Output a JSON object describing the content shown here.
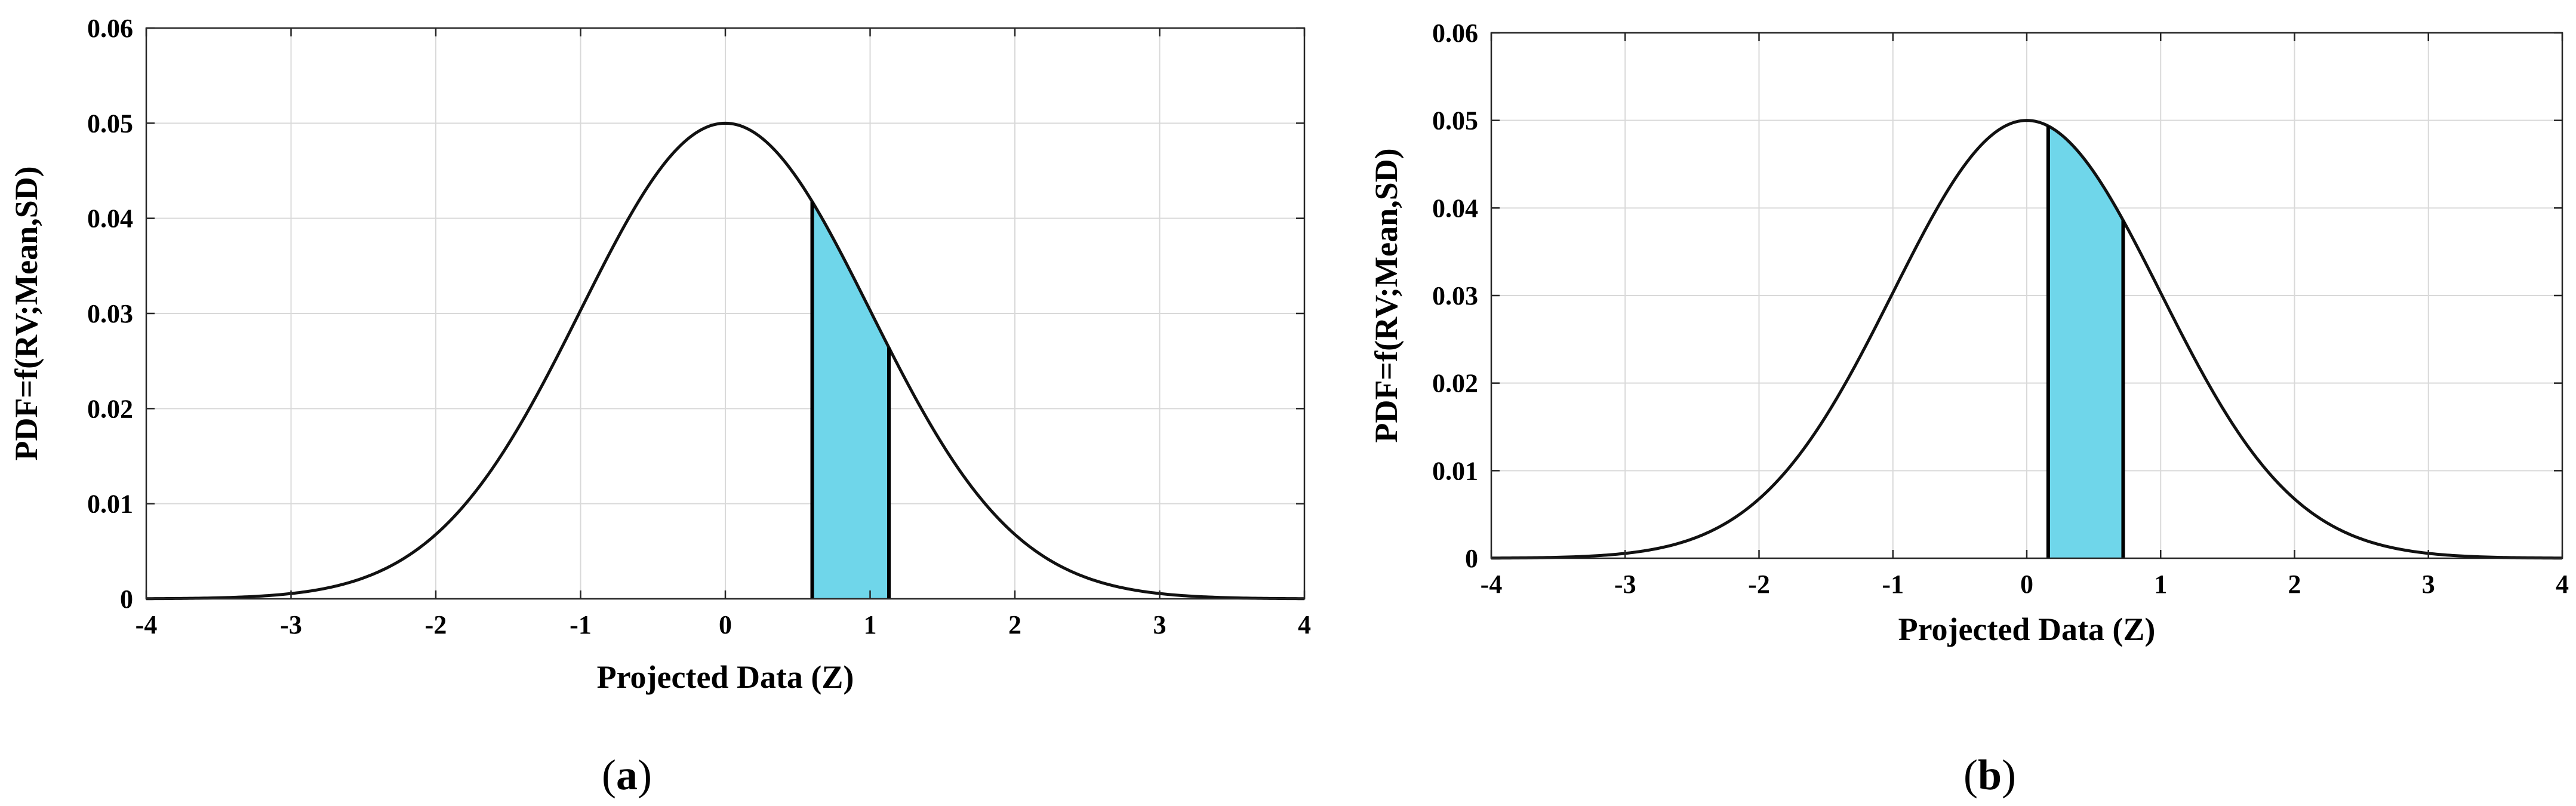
{
  "chart_data": [
    {
      "type": "area",
      "panel_label": {
        "open": "(",
        "letter": "a",
        "close": ")"
      },
      "title": "",
      "xlabel": "Projected Data (Z)",
      "ylabel": "PDF=f(RV;Mean,SD)",
      "xlim": [
        -4,
        4
      ],
      "ylim": [
        0,
        0.06
      ],
      "xticks": [
        -4,
        -3,
        -2,
        -1,
        0,
        1,
        2,
        3,
        4
      ],
      "yticks": [
        0,
        0.01,
        0.02,
        0.03,
        0.04,
        0.05,
        0.06
      ],
      "xtick_labels": [
        "-4",
        "-3",
        "-2",
        "-1",
        "0",
        "1",
        "2",
        "3",
        "4"
      ],
      "ytick_labels": [
        "0",
        "0.01",
        "0.02",
        "0.03",
        "0.04",
        "0.05",
        "0.06"
      ],
      "grid": true,
      "curve": {
        "distribution": "normal",
        "mean": 0,
        "sd": 1,
        "peak": 0.05
      },
      "shaded_interval": [
        0.6,
        1.13
      ],
      "shade_color": "#6fd6ea"
    },
    {
      "type": "area",
      "panel_label": {
        "open": "(",
        "letter": "b",
        "close": ")"
      },
      "title": "",
      "xlabel": "Projected Data (Z)",
      "ylabel": "PDF=f(RV;Mean,SD)",
      "xlim": [
        -4,
        4
      ],
      "ylim": [
        0,
        0.06
      ],
      "xticks": [
        -4,
        -3,
        -2,
        -1,
        0,
        1,
        2,
        3,
        4
      ],
      "yticks": [
        0,
        0.01,
        0.02,
        0.03,
        0.04,
        0.05,
        0.06
      ],
      "xtick_labels": [
        "-4",
        "-3",
        "-2",
        "-1",
        "0",
        "1",
        "2",
        "3",
        "4"
      ],
      "ytick_labels": [
        "0",
        "0.01",
        "0.02",
        "0.03",
        "0.04",
        "0.05",
        "0.06"
      ],
      "grid": true,
      "curve": {
        "distribution": "normal",
        "mean": 0,
        "sd": 1,
        "peak": 0.05
      },
      "shaded_interval": [
        0.16,
        0.72
      ],
      "shade_color": "#6fd6ea"
    }
  ]
}
